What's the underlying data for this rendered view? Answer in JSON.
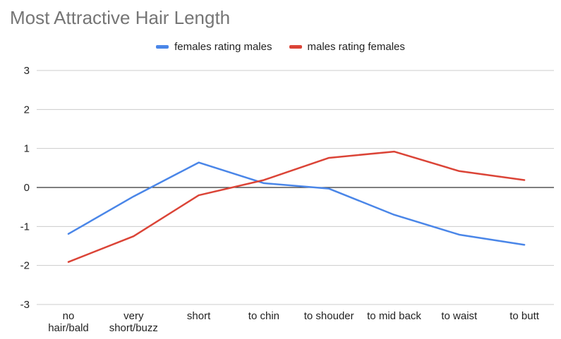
{
  "chart_data": {
    "type": "line",
    "title": "Most Attractive Hair Length",
    "xlabel": "",
    "ylabel": "",
    "categories": [
      [
        "no",
        "hair/bald"
      ],
      [
        "very",
        "short/buzz"
      ],
      [
        "short"
      ],
      [
        "to chin"
      ],
      [
        "to shouder"
      ],
      [
        "to mid back"
      ],
      [
        "to waist"
      ],
      [
        "to butt"
      ]
    ],
    "ylim": [
      -3,
      3
    ],
    "yticks": [
      "3",
      "2",
      "1",
      "0",
      "-1",
      "-2",
      "-3"
    ],
    "series": [
      {
        "name": "females rating males",
        "color": "#4a86e8",
        "values": [
          -1.19,
          -0.23,
          0.64,
          0.11,
          -0.03,
          -0.7,
          -1.21,
          -1.47
        ]
      },
      {
        "name": "males rating females",
        "color": "#db4437",
        "values": [
          -1.91,
          -1.25,
          -0.2,
          0.19,
          0.76,
          0.92,
          0.42,
          0.19
        ]
      }
    ],
    "grid": true,
    "legend": "top"
  }
}
